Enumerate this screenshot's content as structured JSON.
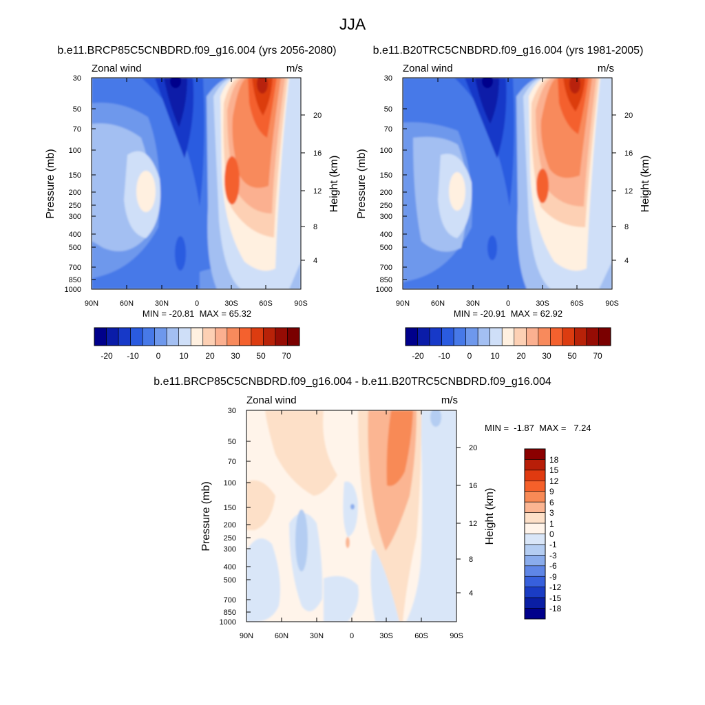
{
  "figure": {
    "title": "JJA"
  },
  "chart_data": [
    {
      "type": "heatmap",
      "id": "future",
      "title": "b.e11.BRCP85C5CNBDRD.f09_g16.004 (yrs 2056-2080)",
      "left_label": "Zonal wind",
      "units": "m/s",
      "ylabel": "Pressure (mb)",
      "y2label": "Height (km)",
      "y_ticks": [
        "30",
        "50",
        "70",
        "100",
        "150",
        "200",
        "250",
        "300",
        "400",
        "500",
        "700",
        "850",
        "1000"
      ],
      "y2_ticks": [
        "20",
        "16",
        "12",
        "8",
        "4"
      ],
      "x_ticks": [
        "90N",
        "60N",
        "30N",
        "0",
        "30S",
        "60S",
        "90S"
      ],
      "min": -20.81,
      "max": 65.32,
      "stats_text": "MIN = -20.81  MAX = 65.32",
      "colorbar": {
        "orientation": "horizontal",
        "levels": [
          -25,
          -20,
          -15,
          -10,
          -5,
          0,
          5,
          10,
          15,
          20,
          25,
          30,
          40,
          50,
          60,
          70
        ],
        "tick_labels": [
          "-20",
          "-10",
          "0",
          "10",
          "20",
          "30",
          "50",
          "70"
        ],
        "colors": [
          "#00008b",
          "#0a1ca8",
          "#1739c8",
          "#2a5be0",
          "#4779e8",
          "#6e98ec",
          "#a3bff2",
          "#cfdff8",
          "#fff0e0",
          "#fdd0b4",
          "#fbb090",
          "#f88a5c",
          "#f4612e",
          "#dc3c10",
          "#b82208",
          "#960c04",
          "#7a0000"
        ]
      }
    },
    {
      "type": "heatmap",
      "id": "historical",
      "title": "b.e11.B20TRC5CNBDRD.f09_g16.004 (yrs 1981-2005)",
      "left_label": "Zonal wind",
      "units": "m/s",
      "ylabel": "Pressure (mb)",
      "y2label": "Height (km)",
      "y_ticks": [
        "30",
        "50",
        "70",
        "100",
        "150",
        "200",
        "250",
        "300",
        "400",
        "500",
        "700",
        "850",
        "1000"
      ],
      "y2_ticks": [
        "20",
        "16",
        "12",
        "8",
        "4"
      ],
      "x_ticks": [
        "90N",
        "60N",
        "30N",
        "0",
        "30S",
        "60S",
        "90S"
      ],
      "min": -20.91,
      "max": 62.92,
      "stats_text": "MIN = -20.91  MAX = 62.92",
      "colorbar": {
        "orientation": "horizontal",
        "levels": [
          -25,
          -20,
          -15,
          -10,
          -5,
          0,
          5,
          10,
          15,
          20,
          25,
          30,
          40,
          50,
          60,
          70
        ],
        "tick_labels": [
          "-20",
          "-10",
          "0",
          "10",
          "20",
          "30",
          "50",
          "70"
        ],
        "colors": [
          "#00008b",
          "#0a1ca8",
          "#1739c8",
          "#2a5be0",
          "#4779e8",
          "#6e98ec",
          "#a3bff2",
          "#cfdff8",
          "#fff0e0",
          "#fdd0b4",
          "#fbb090",
          "#f88a5c",
          "#f4612e",
          "#dc3c10",
          "#b82208",
          "#960c04",
          "#7a0000"
        ]
      }
    },
    {
      "type": "heatmap",
      "id": "difference",
      "title": "b.e11.BRCP85C5CNBDRD.f09_g16.004 - b.e11.B20TRC5CNBDRD.f09_g16.004",
      "left_label": "Zonal wind",
      "units": "m/s",
      "ylabel": "Pressure (mb)",
      "y2label": "Height (km)",
      "y_ticks": [
        "30",
        "50",
        "70",
        "100",
        "150",
        "200",
        "250",
        "300",
        "400",
        "500",
        "700",
        "850",
        "1000"
      ],
      "y2_ticks": [
        "20",
        "16",
        "12",
        "8",
        "4"
      ],
      "x_ticks": [
        "90N",
        "60N",
        "30N",
        "0",
        "30S",
        "60S",
        "90S"
      ],
      "min": -1.87,
      "max": 7.24,
      "stats_text": "MIN =  -1.87  MAX =   7.24",
      "colorbar": {
        "orientation": "vertical",
        "levels": [
          18,
          15,
          12,
          9,
          6,
          3,
          1,
          0,
          -1,
          -3,
          -6,
          -9,
          -12,
          -15,
          -18
        ],
        "tick_labels": [
          "18",
          "15",
          "12",
          "9",
          "6",
          "3",
          "1",
          "0",
          "-1",
          "-3",
          "-6",
          "-9",
          "-12",
          "-15",
          "-18"
        ],
        "colors": [
          "#8b0000",
          "#b81e08",
          "#e03a10",
          "#f5602a",
          "#f88a56",
          "#fbb592",
          "#fde0c8",
          "#fff4ea",
          "#d9e6f8",
          "#b4cdf2",
          "#8aacec",
          "#5f86e6",
          "#3760dc",
          "#1a3cc4",
          "#0a1ea4",
          "#00008b"
        ]
      }
    }
  ]
}
